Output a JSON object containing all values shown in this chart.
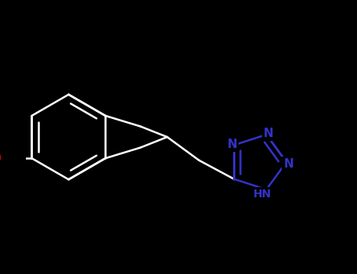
{
  "background_color": "#000000",
  "bond_color": "#ffffff",
  "tetrazole_color": "#3333cc",
  "oxygen_color": "#cc0000",
  "line_width": 1.8,
  "font_size_N": 11,
  "font_size_HN": 10,
  "figsize": [
    4.55,
    3.5
  ],
  "dpi": 100,
  "xlim": [
    -1.0,
    6.5
  ],
  "ylim": [
    -3.2,
    3.2
  ]
}
